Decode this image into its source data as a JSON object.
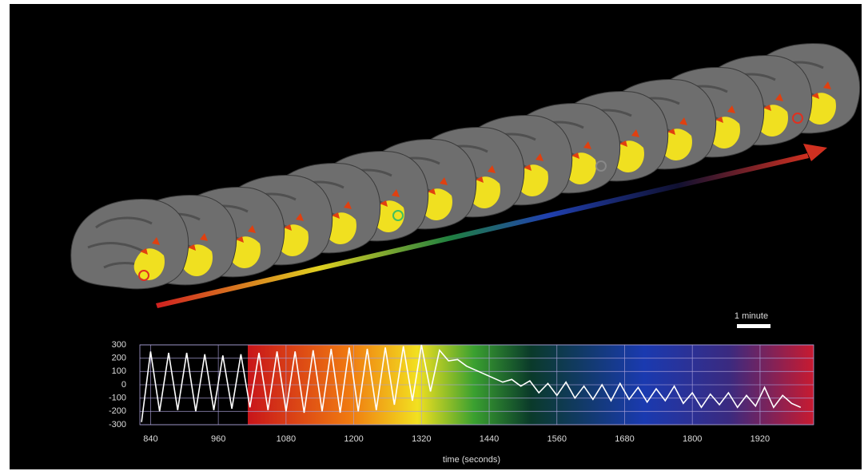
{
  "chart_data": {
    "type": "line",
    "xlabel": "time (seconds)",
    "annotation": "1 minute",
    "x": [
      824,
      840,
      856,
      872,
      888,
      904,
      920,
      936,
      952,
      968,
      984,
      1000,
      1016,
      1032,
      1048,
      1064,
      1080,
      1096,
      1112,
      1128,
      1144,
      1160,
      1176,
      1192,
      1208,
      1224,
      1240,
      1256,
      1272,
      1288,
      1304,
      1320,
      1336,
      1352,
      1368,
      1384,
      1400,
      1416,
      1432,
      1448,
      1464,
      1480,
      1496,
      1512,
      1528,
      1544,
      1560,
      1576,
      1592,
      1608,
      1624,
      1640,
      1656,
      1672,
      1688,
      1704,
      1720,
      1736,
      1752,
      1768,
      1784,
      1800,
      1816,
      1832,
      1848,
      1864,
      1880,
      1896,
      1912,
      1928,
      1944,
      1960,
      1976,
      1992
    ],
    "series": [
      {
        "color": "#ffffff",
        "values": [
          -280,
          250,
          -200,
          240,
          -190,
          240,
          -200,
          230,
          -190,
          220,
          -180,
          230,
          -170,
          240,
          -190,
          250,
          -200,
          250,
          -210,
          260,
          -200,
          270,
          -210,
          280,
          -200,
          270,
          -190,
          280,
          -150,
          290,
          -120,
          300,
          -50,
          260,
          180,
          190,
          140,
          110,
          80,
          50,
          20,
          40,
          -10,
          30,
          -60,
          10,
          -80,
          20,
          -100,
          -10,
          -110,
          0,
          -120,
          10,
          -110,
          -20,
          -130,
          -30,
          -120,
          -10,
          -140,
          -60,
          -170,
          -70,
          -150,
          -60,
          -170,
          -80,
          -160,
          -20,
          -170,
          -80,
          -140,
          -170
        ]
      }
    ],
    "xlim": [
      821,
      2015
    ],
    "ylim": [
      -300,
      300
    ],
    "xticks": [
      840,
      960,
      1080,
      1200,
      1320,
      1440,
      1560,
      1680,
      1800,
      1920
    ],
    "yticks": [
      -300,
      -200,
      -100,
      0,
      100,
      200,
      300
    ],
    "grid": true
  }
}
